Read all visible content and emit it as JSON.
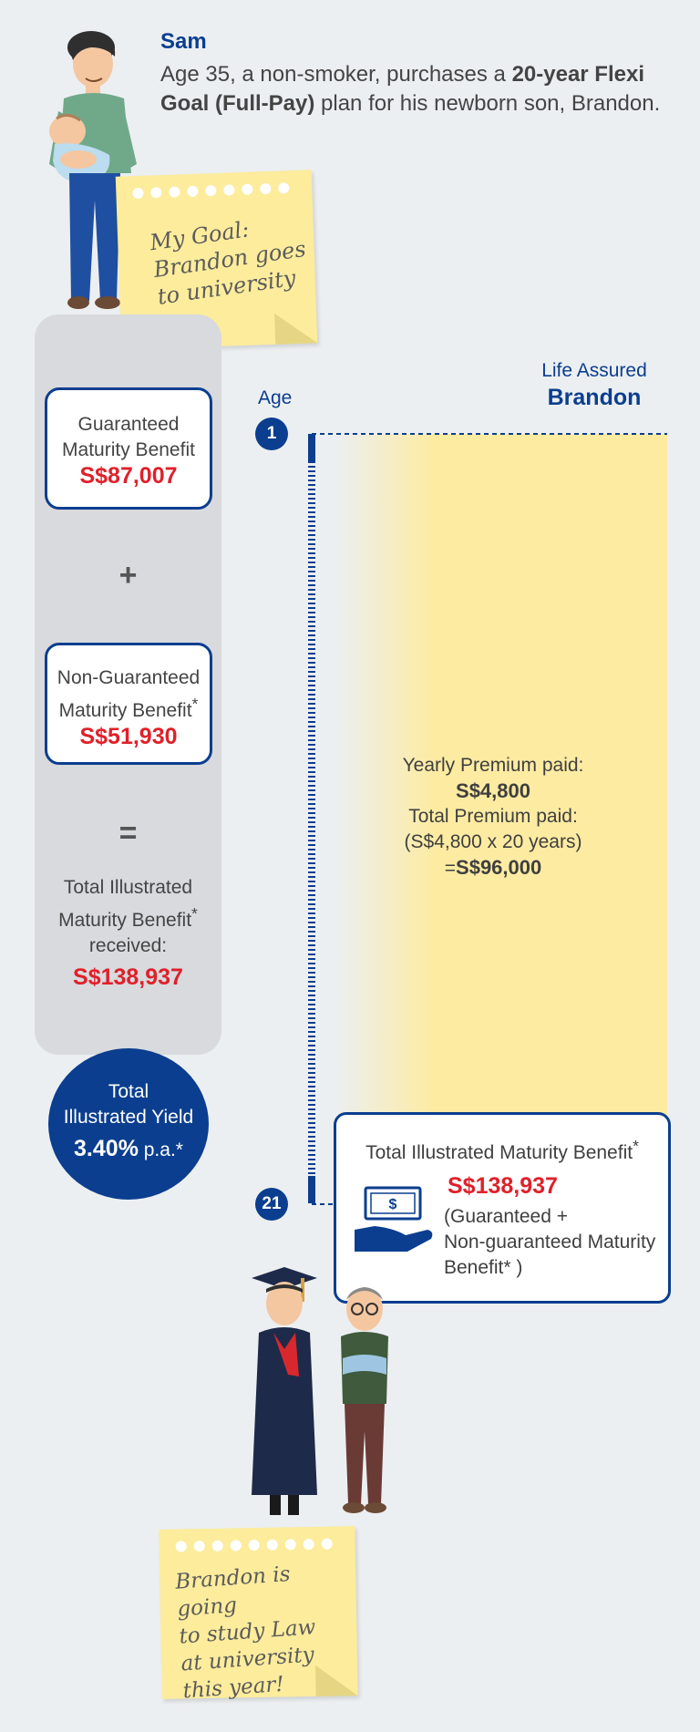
{
  "header": {
    "name": "Sam",
    "desc_a": "Age 35, a non-smoker, purchases a ",
    "desc_b": "20-year Flexi Goal (Full-Pay)",
    "desc_c": " plan for his newborn son, Brandon."
  },
  "goal_note": {
    "lines": [
      "My Goal:",
      "Brandon goes",
      "to university"
    ]
  },
  "benefits": {
    "guaranteed": {
      "label_1": "Guaranteed",
      "label_2": "Maturity Benefit",
      "amount": "S$87,007"
    },
    "plus": "+",
    "non_guaranteed": {
      "label_1": "Non-Guaranteed",
      "label_2": "Maturity Benefit",
      "star": "*",
      "amount": "S$51,930"
    },
    "equals": "=",
    "total": {
      "line_1": "Total Illustrated",
      "line_2": "Maturity Benefit",
      "star": "*",
      "line_3": "received:",
      "amount": "S$138,937"
    }
  },
  "yield": {
    "line_1": "Total",
    "line_2": "Illustrated Yield",
    "value": "3.40%",
    "unit": " p.a.*"
  },
  "timeline": {
    "age_label": "Age",
    "start_age": "1",
    "end_age": "21",
    "life_assured_label": "Life Assured",
    "life_assured_name": "Brandon"
  },
  "premium": {
    "yearly_label": "Yearly Premium paid:",
    "yearly_amount": "S$4,800",
    "total_label": "Total Premium paid:",
    "total_calc": "(S$4,800 x 20 years)",
    "total_eq": "=",
    "total_amount": "S$96,000"
  },
  "maturity_box": {
    "title": "Total Illustrated Maturity Benefit",
    "star": "*",
    "amount": "S$138,937",
    "line_1": "(Guaranteed +",
    "line_2": "Non-guaranteed Maturity",
    "line_3": "Benefit* )"
  },
  "end_note": {
    "lines": [
      "Brandon is going",
      "to study Law",
      "at university",
      "this year!"
    ]
  },
  "colors": {
    "navy": "#0b3e8f",
    "red": "#e0202a",
    "note_yellow": "#fcec9c",
    "band_yellow": "#fdeba2",
    "panel_gray": "#d8dadd"
  },
  "icons": [
    "father-with-baby-illustration",
    "money-in-hand-icon",
    "graduate-with-father-illustration"
  ]
}
